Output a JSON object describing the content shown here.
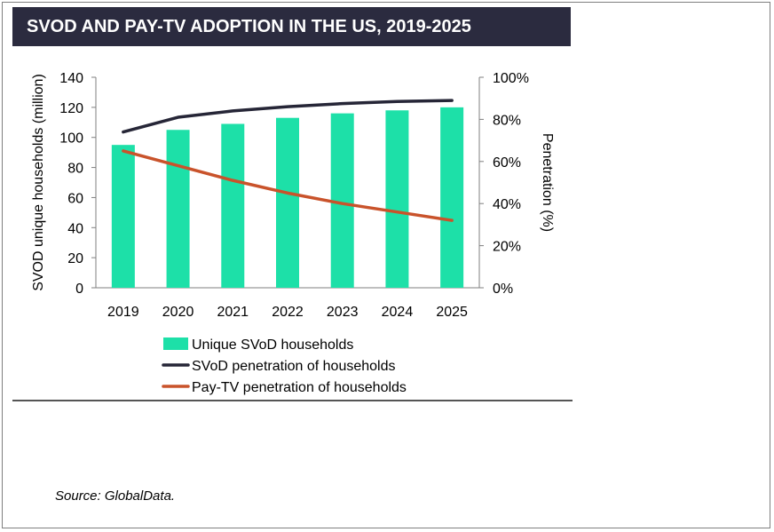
{
  "title": "SVOD AND PAY-TV ADOPTION IN THE US, 2019-2025",
  "source": "Source: GlobalData.",
  "colors": {
    "title_bg": "#2b2b3f",
    "bars": "#1de0a8",
    "svod_line": "#262637",
    "paytv_line": "#c9532b"
  },
  "chart_data": {
    "type": "bar",
    "title": "SVOD AND PAY-TV ADOPTION IN THE US, 2019-2025",
    "categories": [
      "2019",
      "2020",
      "2021",
      "2022",
      "2023",
      "2024",
      "2025"
    ],
    "ylabel": "SVOD unique households (million)",
    "ylim": [
      0,
      140
    ],
    "yticks": [
      "0",
      "20",
      "40",
      "60",
      "80",
      "100",
      "120",
      "140"
    ],
    "y2label": "Penetration  (%)",
    "y2lim": [
      0,
      100
    ],
    "y2ticks": [
      "0%",
      "20%",
      "40%",
      "60%",
      "80%",
      "100%"
    ],
    "grid": false,
    "legend_position": "bottom",
    "series": [
      {
        "name": "Unique SVoD households",
        "type": "bar",
        "axis": "left",
        "values": [
          95,
          105,
          109,
          113,
          116,
          118,
          120
        ]
      },
      {
        "name": "SVoD penetration of households",
        "type": "line",
        "axis": "right",
        "values": [
          74,
          81,
          84,
          86,
          87.5,
          88.5,
          89
        ]
      },
      {
        "name": "Pay-TV penetration of households",
        "type": "line",
        "axis": "right",
        "values": [
          65,
          58,
          51,
          45,
          40,
          36,
          32
        ]
      }
    ]
  }
}
